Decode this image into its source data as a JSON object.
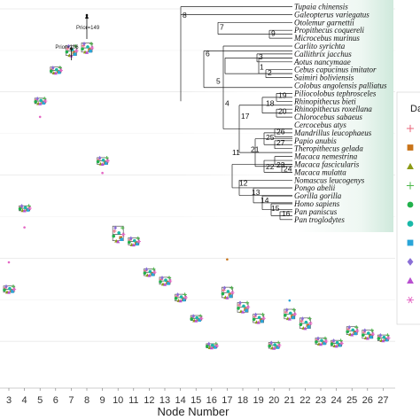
{
  "chart_data": {
    "type": "scatter",
    "xlabel": "Node Number",
    "x_ticks": [
      "3",
      "4",
      "5",
      "6",
      "7",
      "8",
      "9",
      "10",
      "11",
      "12",
      "13",
      "14",
      "15",
      "16",
      "17",
      "18",
      "19",
      "20",
      "21",
      "22",
      "23",
      "24",
      "25",
      "26",
      "27"
    ],
    "annotations": [
      {
        "node": "8",
        "text": "Prior=149"
      },
      {
        "node": "7",
        "text": "Prior=106"
      }
    ],
    "legend_title": "Da",
    "legend_markers": [
      "plus",
      "square",
      "triangle",
      "plus",
      "circle",
      "circle",
      "square",
      "diamond",
      "triangle",
      "asterisk"
    ],
    "colors": [
      "#e8657a",
      "#c9741a",
      "#8c9a15",
      "#4db84b",
      "#22b14c",
      "#19b8a8",
      "#2aa5d8",
      "#8a6fd6",
      "#b84fd0",
      "#e466c4"
    ],
    "boxes": [
      {
        "node": "3",
        "median": 0.325,
        "q1": 0.318,
        "q3": 0.333
      },
      {
        "node": "4",
        "median": 0.52,
        "q1": 0.514,
        "q3": 0.526
      },
      {
        "node": "5",
        "median": 0.778,
        "q1": 0.772,
        "q3": 0.785
      },
      {
        "node": "6",
        "median": 0.852,
        "q1": 0.846,
        "q3": 0.86
      },
      {
        "node": "7",
        "median": 0.899,
        "q1": 0.888,
        "q3": 0.912
      },
      {
        "node": "8",
        "median": 0.906,
        "q1": 0.896,
        "q3": 0.918
      },
      {
        "node": "9",
        "median": 0.634,
        "q1": 0.626,
        "q3": 0.642
      },
      {
        "node": "10",
        "median": 0.457,
        "q1": 0.442,
        "q3": 0.477
      },
      {
        "node": "11",
        "median": 0.44,
        "q1": 0.432,
        "q3": 0.449
      },
      {
        "node": "12",
        "median": 0.366,
        "q1": 0.358,
        "q3": 0.374
      },
      {
        "node": "13",
        "median": 0.345,
        "q1": 0.337,
        "q3": 0.354
      },
      {
        "node": "14",
        "median": 0.305,
        "q1": 0.297,
        "q3": 0.313
      },
      {
        "node": "15",
        "median": 0.255,
        "q1": 0.25,
        "q3": 0.262
      },
      {
        "node": "16",
        "median": 0.189,
        "q1": 0.184,
        "q3": 0.194
      },
      {
        "node": "17",
        "median": 0.317,
        "q1": 0.305,
        "q3": 0.33
      },
      {
        "node": "18",
        "median": 0.282,
        "q1": 0.27,
        "q3": 0.293
      },
      {
        "node": "19",
        "median": 0.255,
        "q1": 0.245,
        "q3": 0.265
      },
      {
        "node": "20",
        "median": 0.19,
        "q1": 0.183,
        "q3": 0.197
      },
      {
        "node": "21",
        "median": 0.265,
        "q1": 0.254,
        "q3": 0.277
      },
      {
        "node": "22",
        "median": 0.243,
        "q1": 0.231,
        "q3": 0.256
      },
      {
        "node": "23",
        "median": 0.2,
        "q1": 0.193,
        "q3": 0.208
      },
      {
        "node": "24",
        "median": 0.195,
        "q1": 0.188,
        "q3": 0.202
      },
      {
        "node": "25",
        "median": 0.225,
        "q1": 0.216,
        "q3": 0.235
      },
      {
        "node": "26",
        "median": 0.217,
        "q1": 0.207,
        "q3": 0.227
      },
      {
        "node": "27",
        "median": 0.208,
        "q1": 0.201,
        "q3": 0.215
      }
    ],
    "outliers": [
      {
        "node": "3",
        "value": 0.39,
        "color": "#e466c4"
      },
      {
        "node": "4",
        "value": 0.474,
        "color": "#e466c4"
      },
      {
        "node": "5",
        "value": 0.74,
        "color": "#e466c4"
      },
      {
        "node": "8",
        "value": 0.985,
        "color": "#111111"
      },
      {
        "node": "9",
        "value": 0.605,
        "color": "#e466c4"
      },
      {
        "node": "17",
        "value": 0.397,
        "color": "#c9741a"
      },
      {
        "node": "21",
        "value": 0.298,
        "color": "#2aa5d8"
      }
    ],
    "y_range": [
      0.1,
      1.0
    ]
  },
  "tree": {
    "taxa": [
      "Tupaia chinensis",
      "Galeopterus variegatus",
      "Otolemur garnettii",
      "Propithecus coquereli",
      "Microcebus murinus",
      "Carlito syrichta",
      "Callithrix jacchus",
      "Aotus nancymaae",
      "Cebus capucinus imitator",
      "Saimiri boliviensis",
      "Colobus angolensis palliatus",
      "Piliocolobus tephrosceles",
      "Rhinopithecus bieti",
      "Rhinopithecus roxellana",
      "Chlorocebus sabaeus",
      "Cercocebus atys",
      "Mandrillus leucophaeus",
      "Papio anubis",
      "Theropithecus gelada",
      "Macaca nemestrina",
      "Macaca fascicularis",
      "Macaca mulatta",
      "Nomascus leucogenys",
      "Pongo abelii",
      "Gorilla gorilla",
      "Homo sapiens",
      "Pan paniscus",
      "Pan troglodytes"
    ],
    "node_labels": [
      "8",
      "7",
      "9",
      "10",
      "6",
      "3",
      "2",
      "1",
      "5",
      "19",
      "18",
      "20",
      "17",
      "4",
      "26",
      "25",
      "27",
      "21",
      "22",
      "23",
      "24",
      "11",
      "12",
      "13",
      "14",
      "15",
      "16"
    ]
  }
}
